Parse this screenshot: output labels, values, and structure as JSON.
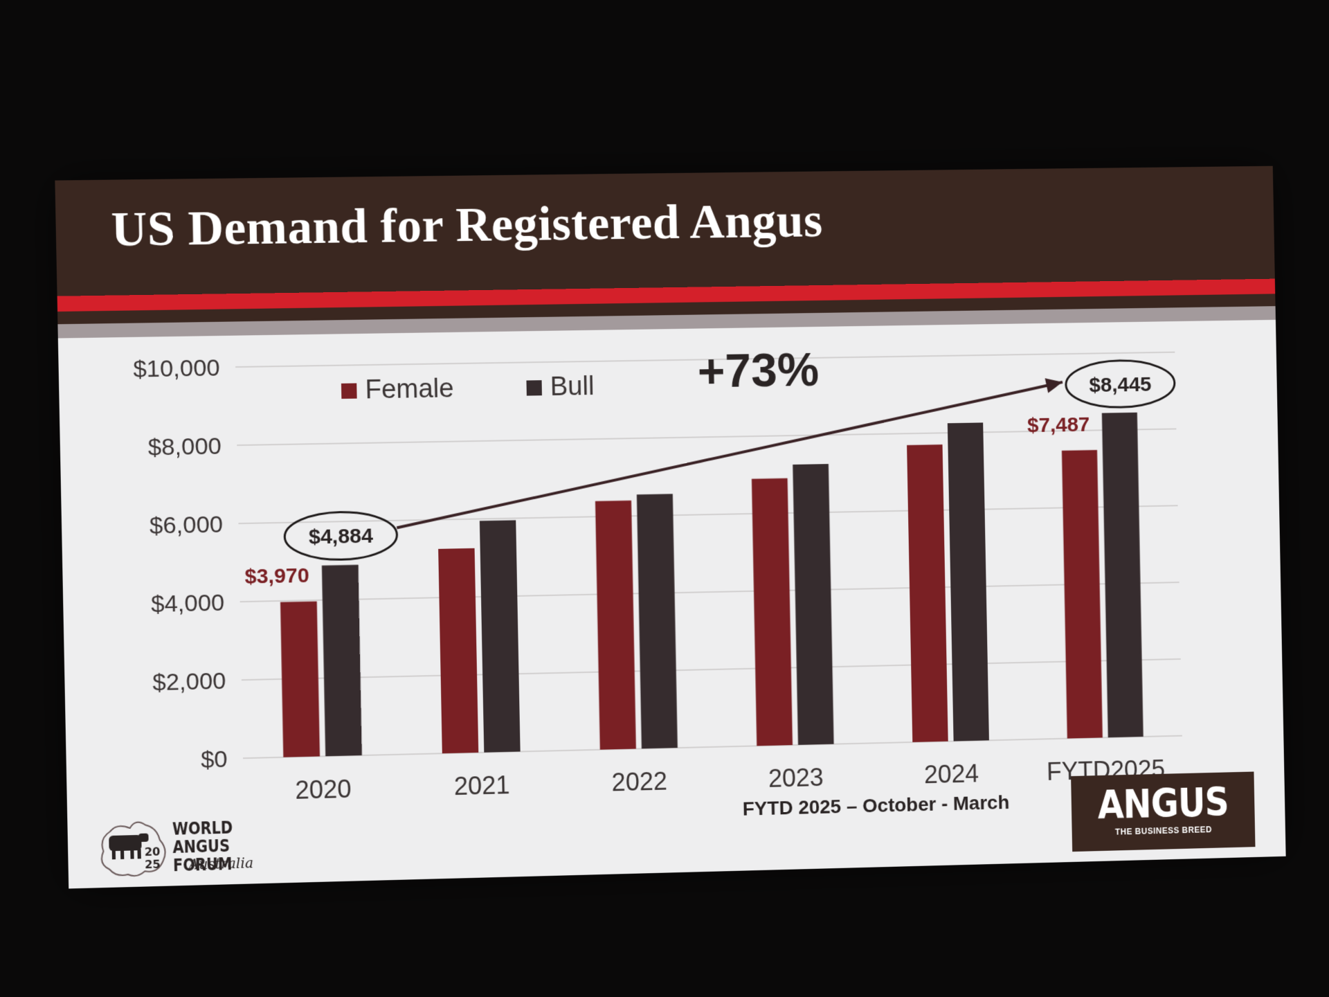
{
  "slide": {
    "title": "US Demand for Registered Angus",
    "footnote": "FYTD 2025 – October - March",
    "brand": {
      "word": "ANGUS",
      "tagline": "THE BUSINESS BREED"
    },
    "forum_logo": {
      "line1": "WORLD",
      "line2": "ANGUS FORUM",
      "script": "Australia",
      "year_top": "20",
      "year_bottom": "25"
    },
    "colors": {
      "header": "#3a2720",
      "accent_red": "#d4202a",
      "female": "#7a2024",
      "bull": "#362c2e"
    }
  },
  "chart_data": {
    "type": "bar",
    "categories": [
      "2020",
      "2021",
      "2022",
      "2023",
      "2024",
      "FYTD2025"
    ],
    "series": [
      {
        "name": "Female",
        "color": "#7a2024",
        "values": [
          3970,
          5250,
          6400,
          6900,
          7700,
          7487
        ]
      },
      {
        "name": "Bull",
        "color": "#362c2e",
        "values": [
          4884,
          5950,
          6550,
          7250,
          8250,
          8445
        ]
      }
    ],
    "ylim": [
      0,
      10000
    ],
    "yticks": [
      "$0",
      "$2,000",
      "$4,000",
      "$6,000",
      "$8,000",
      "$10,000"
    ],
    "grid": true,
    "legend": "top-left",
    "data_labels": [
      {
        "series": "Female",
        "category": "2020",
        "text": "$3,970"
      },
      {
        "series": "Bull",
        "category": "2020",
        "text": "$4,884",
        "circled": true
      },
      {
        "series": "Female",
        "category": "FYTD2025",
        "text": "$7,487"
      },
      {
        "series": "Bull",
        "category": "FYTD2025",
        "text": "$8,445",
        "circled": true
      }
    ],
    "annotation": {
      "text": "+73%",
      "from": "2020 Bull",
      "to": "FYTD2025 Bull"
    }
  }
}
